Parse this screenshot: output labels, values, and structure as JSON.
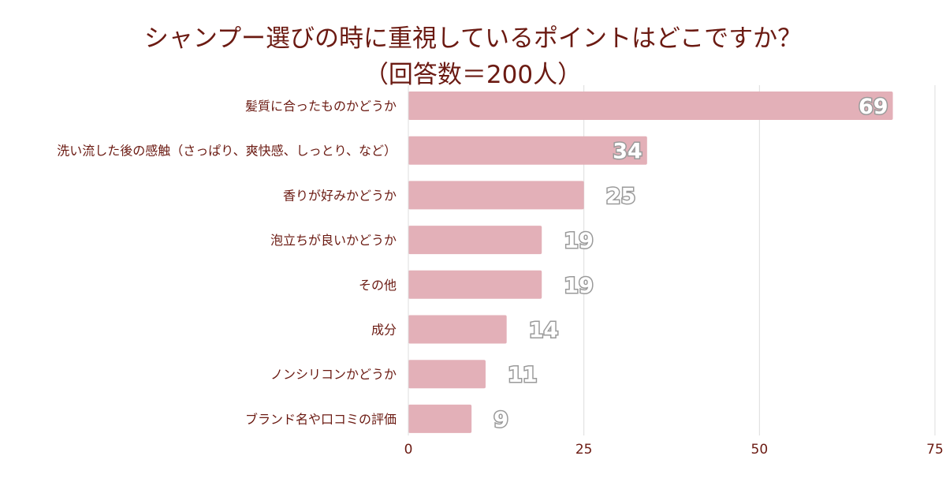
{
  "chart_data": {
    "type": "bar",
    "orientation": "horizontal",
    "title": "シャンプー選びの時に重視しているポイントはどこですか？",
    "subtitle": "（回答数＝200人）",
    "categories": [
      "髪質に合ったものかどうか",
      "洗い流した後の感触（さっぱり、爽快感、しっとり、など）",
      "香りが好みかどうか",
      "泡立ちが良いかどうか",
      "その他",
      "成分",
      "ノンシリコンかどうか",
      "ブランド名や口コミの評価"
    ],
    "values": [
      69,
      34,
      25,
      19,
      19,
      14,
      11,
      9
    ],
    "xlim": [
      0,
      75
    ],
    "ticks": [
      0,
      25,
      50,
      75
    ],
    "grid": true,
    "legend": "none",
    "colors": {
      "bar": "#e3b0b8",
      "grid": "#dcdcdc",
      "text": "#6b1a12",
      "label_fill": "#ffffff",
      "label_stroke": "#9a9a9a"
    }
  }
}
